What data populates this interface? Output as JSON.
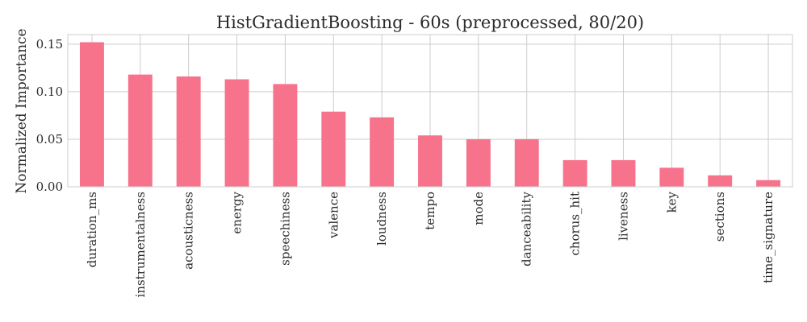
{
  "chart_data": {
    "type": "bar",
    "title": "HistGradientBoosting - 60s (preprocessed, 80/20)",
    "xlabel": "",
    "ylabel": "Normalized Importance",
    "categories": [
      "duration_ms",
      "instrumentalness",
      "acousticness",
      "energy",
      "speechiness",
      "valence",
      "loudness",
      "tempo",
      "mode",
      "danceability",
      "chorus_hit",
      "liveness",
      "key",
      "sections",
      "time_signature"
    ],
    "values": [
      0.152,
      0.118,
      0.116,
      0.113,
      0.108,
      0.079,
      0.073,
      0.054,
      0.05,
      0.05,
      0.028,
      0.028,
      0.02,
      0.012,
      0.007
    ],
    "ylim": [
      0,
      0.16
    ],
    "yticks": [
      "0.00",
      "0.05",
      "0.10",
      "0.15"
    ],
    "ytick_values": [
      0,
      0.05,
      0.1,
      0.15
    ],
    "grid": true,
    "bar_color": "#f7738c",
    "grid_color": "#cccccc"
  }
}
